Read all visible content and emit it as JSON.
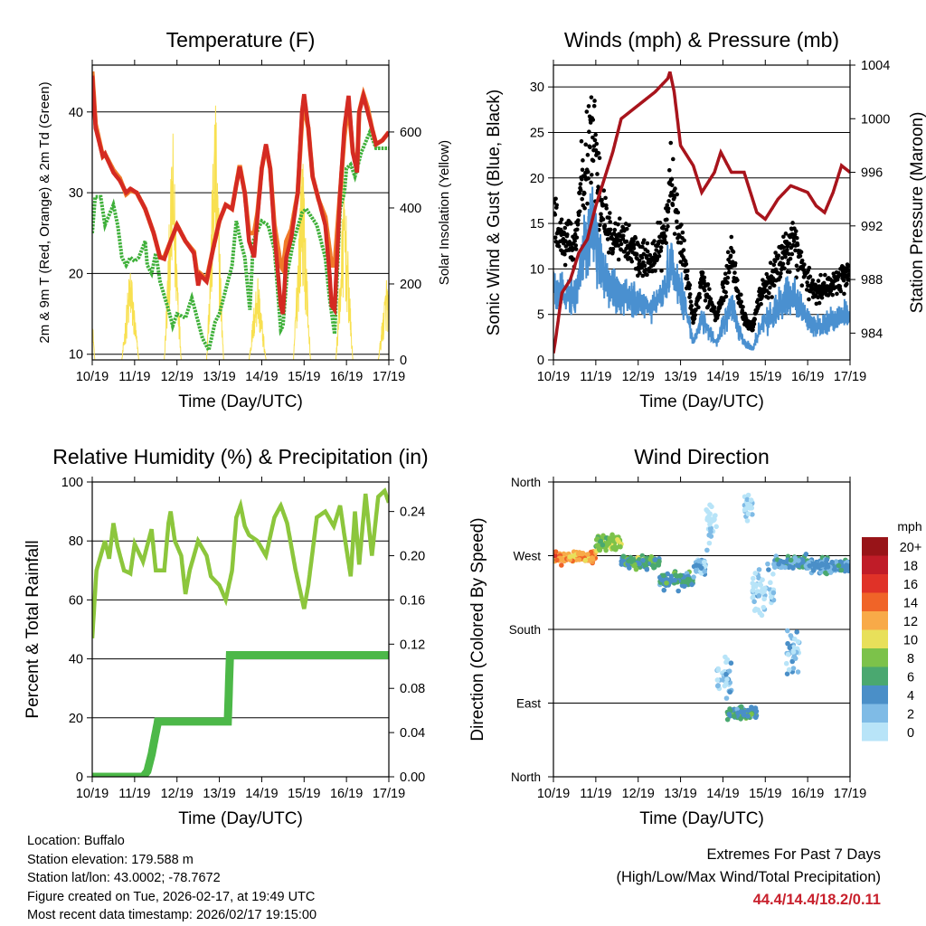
{
  "x_ticks": [
    "10/19",
    "11/19",
    "12/19",
    "13/19",
    "14/19",
    "15/19",
    "16/19",
    "17/19"
  ],
  "x_label": "Time (Day/UTC)",
  "chart_data": [
    {
      "id": "temperature",
      "type": "line",
      "title": "Temperature (F)",
      "ylabel": "2m & 9m T (Red, Orange) & 2m Td (Green)",
      "y2label": "Solar Insolation (Yellow)",
      "ylim": [
        9.3,
        45.8
      ],
      "yticks": [
        10,
        20,
        30,
        40
      ],
      "y2lim": [
        0,
        776
      ],
      "y2ticks": [
        0,
        200,
        400,
        600
      ],
      "xlim": [
        0,
        7
      ],
      "series": [
        {
          "name": "2m T",
          "color": "#d42a22",
          "x": [
            0,
            0.08,
            0.25,
            0.3,
            0.5,
            0.65,
            0.8,
            0.9,
            1.05,
            1.25,
            1.45,
            1.6,
            1.7,
            1.85,
            2.0,
            2.2,
            2.4,
            2.5,
            2.55,
            2.7,
            2.85,
            3.0,
            3.15,
            3.3,
            3.4,
            3.48,
            3.6,
            3.7,
            3.82,
            3.9,
            4.0,
            4.1,
            4.2,
            4.3,
            4.45,
            4.5,
            4.58,
            4.7,
            4.85,
            4.95,
            5.0,
            5.1,
            5.2,
            5.35,
            5.5,
            5.6,
            5.65,
            5.72,
            5.85,
            5.95,
            6.05,
            6.15,
            6.25,
            6.3,
            6.4,
            6.5,
            6.6,
            6.7,
            6.85,
            7
          ],
          "y": [
            44.5,
            38,
            34.5,
            34.8,
            32.5,
            31.5,
            30,
            30.5,
            30,
            28,
            25,
            22,
            21.8,
            24,
            26,
            24,
            22.5,
            18.5,
            19.8,
            19,
            23,
            26.5,
            28.5,
            28,
            31,
            33.2,
            30,
            24,
            22,
            27,
            33,
            36,
            33,
            25,
            16,
            15,
            22,
            24.5,
            30,
            40,
            42.2,
            38,
            32,
            29,
            26,
            20,
            16,
            15.5,
            30,
            38,
            42,
            35,
            32.5,
            40,
            42,
            40,
            38,
            36,
            36.5,
            37.5
          ]
        },
        {
          "name": "9m T",
          "color": "#f07a2a",
          "x": [
            0,
            0.08,
            0.25,
            0.3,
            0.5,
            0.65,
            0.8,
            0.9,
            1.05,
            1.25,
            1.45,
            1.6,
            1.7,
            1.85,
            2.0,
            2.2,
            2.4,
            2.5,
            2.55,
            2.7,
            2.85,
            3.0,
            3.15,
            3.3,
            3.4,
            3.48,
            3.6,
            3.7,
            3.82,
            3.9,
            4.0,
            4.1,
            4.2,
            4.3,
            4.45,
            4.5,
            4.58,
            4.7,
            4.85,
            4.95,
            5.0,
            5.1,
            5.2,
            5.35,
            5.5,
            5.6,
            5.65,
            5.72,
            5.85,
            5.95,
            6.05,
            6.15,
            6.25,
            6.3,
            6.4,
            6.5,
            6.6,
            6.7,
            6.85,
            7
          ],
          "y": [
            45,
            38.5,
            34.5,
            34.8,
            32.8,
            31.8,
            29.8,
            30.3,
            30,
            28,
            25,
            22,
            22,
            24,
            26,
            24,
            22.7,
            19,
            20,
            19.3,
            23,
            26.5,
            28.5,
            28,
            31,
            33.4,
            30,
            25,
            25,
            27.5,
            33,
            35.8,
            33,
            26,
            21,
            20.5,
            24,
            25.5,
            30,
            39,
            40.5,
            38,
            32,
            29,
            27,
            23,
            21,
            21,
            30,
            37,
            41,
            35,
            33,
            40,
            42.2,
            40.5,
            38,
            36,
            36.5,
            37.5
          ]
        },
        {
          "name": "2m Td",
          "color": "#3fb03a",
          "x": [
            0,
            0.07,
            0.2,
            0.3,
            0.5,
            0.6,
            0.7,
            0.8,
            0.9,
            1.0,
            1.1,
            1.25,
            1.3,
            1.4,
            1.5,
            1.6,
            1.8,
            1.9,
            2.0,
            2.2,
            2.35,
            2.5,
            2.6,
            2.75,
            2.9,
            3.0,
            3.15,
            3.3,
            3.4,
            3.5,
            3.6,
            3.72,
            3.8,
            4.0,
            4.15,
            4.3,
            4.45,
            4.5,
            4.6,
            4.75,
            4.95,
            5.05,
            5.3,
            5.5,
            5.6,
            5.72,
            5.85,
            5.95,
            6.0,
            6.1,
            6.2,
            6.35,
            6.55,
            6.7,
            7
          ],
          "y": [
            25,
            29.5,
            29.5,
            26,
            28.5,
            26,
            22,
            21,
            22,
            21.5,
            22,
            24,
            21,
            20,
            22.5,
            19,
            15.5,
            13.5,
            15,
            14.5,
            17,
            14,
            12,
            10.5,
            14,
            15,
            18,
            21,
            26.5,
            24,
            22,
            15.5,
            24,
            26.5,
            26,
            23,
            13,
            13.5,
            20,
            24,
            27.5,
            28,
            26,
            22,
            17,
            12.5,
            28,
            30,
            33,
            33.5,
            32,
            35,
            37.5,
            35.5,
            35.5
          ]
        },
        {
          "name": "Solar Insolation",
          "color": "#f8e050",
          "axis": "right",
          "daily_peaks": [
            {
              "day": 0.9,
              "value": 270
            },
            {
              "day": 1.9,
              "value": 620
            },
            {
              "day": 2.9,
              "value": 720
            },
            {
              "day": 3.9,
              "value": 250
            },
            {
              "day": 4.95,
              "value": 600
            },
            {
              "day": 5.95,
              "value": 500
            },
            {
              "day": 6.95,
              "value": 230
            }
          ]
        }
      ]
    },
    {
      "id": "winds",
      "type": "scatter",
      "title": "Winds (mph) & Pressure (mb)",
      "ylabel": "Sonic Wind & Gust (Blue, Black)",
      "y2label": "Station Pressure (Maroon)",
      "ylim": [
        0,
        32.4
      ],
      "yticks": [
        0,
        5,
        10,
        15,
        20,
        25,
        30
      ],
      "y2lim": [
        982,
        1004
      ],
      "y2ticks": [
        984,
        988,
        992,
        996,
        1000,
        1004
      ],
      "xlim": [
        0,
        7
      ],
      "series": [
        {
          "name": "Gust",
          "color": "#000000",
          "x": [
            0,
            0.1,
            0.5,
            0.75,
            0.9,
            1.0,
            1.1,
            1.3,
            1.5,
            1.8,
            2.0,
            2.3,
            2.6,
            2.8,
            2.9,
            3.1,
            3.3,
            3.5,
            3.7,
            3.85,
            4.0,
            4.2,
            4.35,
            4.5,
            4.7,
            4.9,
            5.2,
            5.4,
            5.6,
            5.8,
            6.0,
            6.2,
            7
          ],
          "y": [
            15,
            12,
            11,
            20,
            23,
            22,
            17,
            13,
            12,
            11,
            10,
            9,
            12,
            18,
            14,
            10,
            3,
            7,
            5,
            3,
            6,
            10,
            6,
            3,
            2,
            6,
            8,
            10,
            12,
            10,
            7,
            6,
            8
          ]
        },
        {
          "name": "Sonic Wind",
          "color": "#4a90d0",
          "scale_of_gust": 0.62
        },
        {
          "name": "Station Pressure",
          "color": "#a8141c",
          "axis": "right",
          "x": [
            0,
            0.05,
            0.2,
            0.4,
            0.6,
            0.8,
            1.0,
            1.2,
            1.4,
            1.6,
            2.0,
            2.4,
            2.7,
            2.75,
            2.85,
            3.0,
            3.3,
            3.5,
            3.8,
            3.95,
            4.2,
            4.5,
            4.8,
            5.0,
            5.3,
            5.6,
            6.0,
            6.2,
            6.4,
            6.6,
            6.8,
            7
          ],
          "y": [
            982.5,
            983.5,
            987,
            988,
            990,
            991,
            993.5,
            995.5,
            997.5,
            1000,
            1001,
            1002,
            1003,
            1003.5,
            1002,
            998,
            996.5,
            994.5,
            996,
            997.5,
            996,
            996,
            993,
            992.5,
            994,
            995,
            994.5,
            993.5,
            993,
            994.5,
            996.5,
            996
          ]
        }
      ]
    },
    {
      "id": "humidity",
      "type": "line",
      "title": "Relative Humidity (%) & Precipitation (in)",
      "ylabel": "Percent & Total Rainfall",
      "ylim": [
        0,
        100
      ],
      "yticks": [
        0,
        20,
        40,
        60,
        80,
        100
      ],
      "y2lim": [
        0,
        0.2667
      ],
      "y2ticks": [
        "0.00",
        "0.04",
        "0.08",
        "0.12",
        "0.16",
        "0.20",
        "0.24"
      ],
      "xlim": [
        0,
        7
      ],
      "series": [
        {
          "name": "Relative Humidity",
          "color": "#8cc63c",
          "x": [
            0,
            0.1,
            0.3,
            0.4,
            0.5,
            0.6,
            0.75,
            0.9,
            1.0,
            1.2,
            1.4,
            1.5,
            1.7,
            1.8,
            1.85,
            1.95,
            2.1,
            2.2,
            2.3,
            2.5,
            2.7,
            2.8,
            3.0,
            3.15,
            3.3,
            3.4,
            3.5,
            3.6,
            3.7,
            3.9,
            4.1,
            4.3,
            4.45,
            4.6,
            4.8,
            5.0,
            5.1,
            5.3,
            5.5,
            5.7,
            5.85,
            5.95,
            6.1,
            6.2,
            6.3,
            6.45,
            6.6,
            6.75,
            6.9,
            7
          ],
          "y": [
            47,
            70,
            80,
            74,
            86,
            78,
            70,
            69,
            79,
            73,
            84,
            70,
            70,
            86,
            90,
            80,
            75,
            62,
            70,
            80,
            75,
            68,
            65,
            60,
            70,
            88,
            92,
            85,
            82,
            80,
            75,
            88,
            92,
            86,
            70,
            57,
            65,
            88,
            90,
            85,
            92,
            82,
            68,
            90,
            72,
            96,
            75,
            95,
            97,
            93
          ]
        },
        {
          "name": "Total Rainfall",
          "color": "#4cb848",
          "axis": "right",
          "x": [
            0,
            1.2,
            1.3,
            1.4,
            1.45,
            1.55,
            3.2,
            3.25,
            7
          ],
          "y": [
            0,
            0,
            0.005,
            0.02,
            0.03,
            0.05,
            0.05,
            0.11,
            0.11
          ]
        }
      ]
    },
    {
      "id": "direction",
      "type": "scatter",
      "title": "Wind Direction",
      "ylabel": "Direction (Colored By Speed)",
      "ylim": [
        0,
        360
      ],
      "yticks": [
        {
          "value": 360,
          "label": "North"
        },
        {
          "value": 270,
          "label": "West"
        },
        {
          "value": 180,
          "label": "South"
        },
        {
          "value": 90,
          "label": "East"
        },
        {
          "value": 0,
          "label": "North"
        }
      ],
      "xlim": [
        0,
        7
      ],
      "legend": {
        "title": "mph",
        "placement": "right",
        "bins": [
          {
            "label": "20+",
            "color": "#981418"
          },
          {
            "label": "18",
            "color": "#c01c28"
          },
          {
            "label": "16",
            "color": "#e03228"
          },
          {
            "label": "14",
            "color": "#f06428"
          },
          {
            "label": "12",
            "color": "#f8aa48"
          },
          {
            "label": "10",
            "color": "#e8e05a"
          },
          {
            "label": "8",
            "color": "#7cc24a"
          },
          {
            "label": "6",
            "color": "#4aa870"
          },
          {
            "label": "4",
            "color": "#4a8fc8"
          },
          {
            "label": "2",
            "color": "#7fbbe6"
          },
          {
            "label": "0",
            "color": "#b8e4f8"
          }
        ]
      },
      "clusters": [
        {
          "t": [
            0,
            1.0
          ],
          "dir": 268,
          "spread": 10,
          "speed": 13
        },
        {
          "t": [
            1.0,
            1.6
          ],
          "dir": 285,
          "spread": 14,
          "speed": 9
        },
        {
          "t": [
            1.6,
            2.5
          ],
          "dir": 262,
          "spread": 12,
          "speed": 7
        },
        {
          "t": [
            2.5,
            3.3
          ],
          "dir": 240,
          "spread": 14,
          "speed": 6
        },
        {
          "t": [
            3.3,
            3.6
          ],
          "dir": 255,
          "spread": 14,
          "speed": 3
        },
        {
          "t": [
            3.6,
            3.85
          ],
          "dir": 310,
          "spread": 45,
          "speed": 1
        },
        {
          "t": [
            3.85,
            4.2
          ],
          "dir": 120,
          "spread": 30,
          "speed": 2
        },
        {
          "t": [
            4.1,
            4.8
          ],
          "dir": 78,
          "spread": 10,
          "speed": 6
        },
        {
          "t": [
            4.5,
            4.7
          ],
          "dir": 330,
          "spread": 30,
          "speed": 1
        },
        {
          "t": [
            4.7,
            5.2
          ],
          "dir": 230,
          "spread": 40,
          "speed": 2
        },
        {
          "t": [
            5.2,
            6.0
          ],
          "dir": 262,
          "spread": 12,
          "speed": 5
        },
        {
          "t": [
            5.5,
            5.8
          ],
          "dir": 150,
          "spread": 40,
          "speed": 3
        },
        {
          "t": [
            6.0,
            7.0
          ],
          "dir": 258,
          "spread": 12,
          "speed": 5
        }
      ]
    }
  ],
  "station": {
    "location": "Location: Buffalo",
    "elevation": "Station elevation: 179.588 m",
    "latlon": "Station lat/lon: 43.0002; -78.7672",
    "created": "Figure created on Tue, 2026-02-17, at 19:49 UTC",
    "recent": "Most recent data timestamp: 2026/02/17 19:15:00"
  },
  "extremes": {
    "title": "Extremes For Past 7 Days",
    "subtitle": "(High/Low/Max Wind/Total Precipitation)",
    "values": "44.4/14.4/18.2/0.11"
  }
}
